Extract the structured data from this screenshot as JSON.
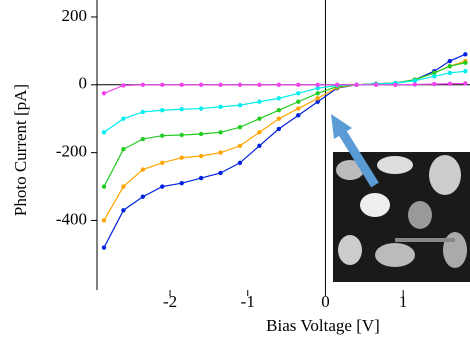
{
  "chart_data": {
    "type": "line",
    "x_label": "Bias Voltage [V]",
    "y_label": "Photo Current [pA]",
    "x": [
      -2.85,
      -2.6,
      -2.35,
      -2.1,
      -1.85,
      -1.6,
      -1.35,
      -1.1,
      -0.85,
      -0.6,
      -0.35,
      -0.1,
      0.15,
      0.4,
      0.65,
      0.9,
      1.15,
      1.4,
      1.6,
      1.8
    ],
    "series": [
      {
        "color": "#0022dd",
        "values": [
          -480,
          -370,
          -330,
          -300,
          -290,
          -275,
          -260,
          -230,
          -180,
          -130,
          -90,
          -50,
          -10,
          0,
          3,
          5,
          15,
          40,
          70,
          90
        ]
      },
      {
        "color": "#ffa500",
        "values": [
          -400,
          -300,
          -250,
          -230,
          -215,
          -210,
          -200,
          -180,
          -140,
          -100,
          -70,
          -40,
          -8,
          0,
          3,
          5,
          15,
          35,
          55,
          70
        ]
      },
      {
        "color": "#22cc22",
        "values": [
          -300,
          -190,
          -160,
          -150,
          -148,
          -145,
          -140,
          -125,
          -100,
          -75,
          -50,
          -25,
          -5,
          0,
          3,
          5,
          15,
          35,
          55,
          65
        ]
      },
      {
        "color": "#00eeee",
        "values": [
          -140,
          -100,
          -80,
          -75,
          -72,
          -70,
          -65,
          -60,
          -50,
          -40,
          -25,
          -10,
          -2,
          0,
          2,
          5,
          12,
          25,
          35,
          40
        ]
      },
      {
        "color": "#ee44ee",
        "values": [
          -25,
          -2,
          0,
          0,
          0,
          0,
          0,
          0,
          0,
          0,
          0,
          0,
          0,
          0,
          0,
          0,
          1,
          2,
          3,
          4
        ]
      }
    ],
    "xlim": [
      -2.94,
      1.86
    ],
    "ylim": [
      -605,
      250
    ],
    "xticks": [
      -2,
      -1,
      0,
      1
    ],
    "yticks": [
      200,
      0,
      -200,
      -400
    ]
  }
}
